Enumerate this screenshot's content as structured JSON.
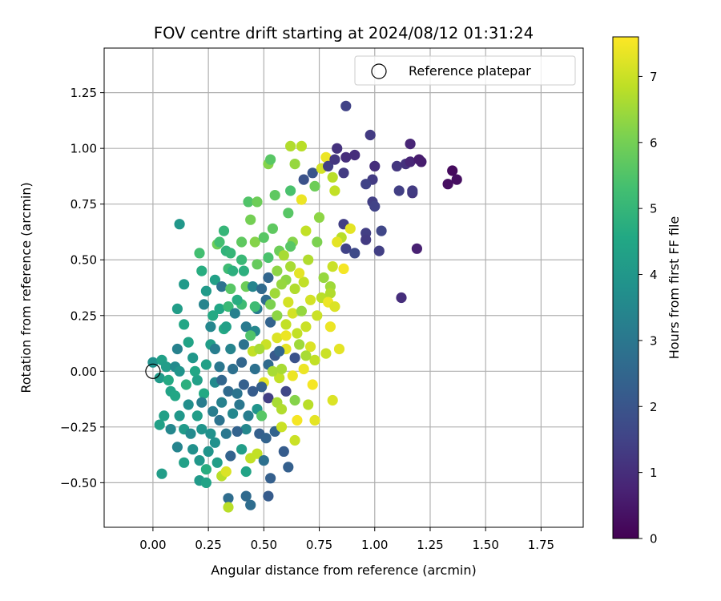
{
  "chart_data": {
    "type": "scatter",
    "title": "FOV centre drift starting at 2024/08/12 01:31:24",
    "xlabel": "Angular distance from reference (arcmin)",
    "ylabel": "Rotation from reference (arcmin)",
    "colorbar_label": "Hours from first FF file",
    "colormap": "viridis",
    "xlim": [
      -0.22,
      1.94
    ],
    "ylim": [
      -0.7,
      1.45
    ],
    "clim": [
      0,
      7.6
    ],
    "xticks": [
      "0.00",
      "0.25",
      "0.50",
      "0.75",
      "1.00",
      "1.25",
      "1.50",
      "1.75"
    ],
    "yticks": [
      "−0.50",
      "−0.25",
      "0.00",
      "0.25",
      "0.50",
      "0.75",
      "1.00",
      "1.25"
    ],
    "cticks": [
      "0",
      "1",
      "2",
      "3",
      "4",
      "5",
      "6",
      "7"
    ],
    "grid": true,
    "legend_position": "top-right",
    "reference_point": {
      "name": "Reference platepar",
      "x": 0.0,
      "y": 0.0
    },
    "series_note": "color = hours from first FF file",
    "points": [
      [
        0.0,
        0.04,
        3.8
      ],
      [
        0.04,
        0.05,
        4.3
      ],
      [
        0.06,
        0.02,
        4.2
      ],
      [
        0.03,
        -0.03,
        4.1
      ],
      [
        0.07,
        -0.04,
        4.6
      ],
      [
        0.1,
        0.02,
        3.6
      ],
      [
        0.12,
        0.0,
        3.9
      ],
      [
        0.08,
        -0.09,
        4.4
      ],
      [
        0.1,
        -0.11,
        4.5
      ],
      [
        0.05,
        -0.2,
        4.3
      ],
      [
        0.12,
        -0.2,
        4.0
      ],
      [
        0.16,
        -0.15,
        3.7
      ],
      [
        0.14,
        -0.26,
        4.1
      ],
      [
        0.08,
        -0.26,
        3.5
      ],
      [
        0.03,
        -0.24,
        4.3
      ],
      [
        0.11,
        0.1,
        3.3
      ],
      [
        0.14,
        0.21,
        4.5
      ],
      [
        0.11,
        0.28,
        4.2
      ],
      [
        0.14,
        0.39,
        4.1
      ],
      [
        0.12,
        0.66,
        4.0
      ],
      [
        0.16,
        0.13,
        4.4
      ],
      [
        0.18,
        0.06,
        4.0
      ],
      [
        0.2,
        -0.04,
        4.3
      ],
      [
        0.2,
        -0.2,
        4.2
      ],
      [
        0.22,
        -0.26,
        3.9
      ],
      [
        0.17,
        -0.28,
        3.6
      ],
      [
        0.11,
        -0.34,
        3.4
      ],
      [
        0.14,
        -0.41,
        4.3
      ],
      [
        0.04,
        -0.46,
        4.2
      ],
      [
        0.21,
        -0.4,
        4.0
      ],
      [
        0.21,
        -0.49,
        4.1
      ],
      [
        0.24,
        -0.5,
        4.4
      ],
      [
        0.25,
        -0.36,
        3.9
      ],
      [
        0.26,
        -0.28,
        3.8
      ],
      [
        0.23,
        -0.1,
        4.6
      ],
      [
        0.24,
        0.03,
        4.3
      ],
      [
        0.26,
        0.12,
        4.2
      ],
      [
        0.26,
        0.2,
        3.5
      ],
      [
        0.23,
        0.3,
        3.4
      ],
      [
        0.24,
        0.36,
        4.1
      ],
      [
        0.22,
        0.45,
        4.7
      ],
      [
        0.21,
        0.53,
        5.3
      ],
      [
        0.28,
        0.41,
        4.3
      ],
      [
        0.31,
        0.38,
        2.9
      ],
      [
        0.3,
        0.28,
        4.5
      ],
      [
        0.32,
        0.19,
        4.6
      ],
      [
        0.28,
        0.1,
        3.2
      ],
      [
        0.3,
        0.02,
        3.0
      ],
      [
        0.28,
        -0.05,
        3.6
      ],
      [
        0.31,
        -0.14,
        3.3
      ],
      [
        0.3,
        -0.22,
        2.9
      ],
      [
        0.28,
        -0.32,
        3.8
      ],
      [
        0.29,
        -0.41,
        4.2
      ],
      [
        0.31,
        -0.47,
        6.8
      ],
      [
        0.33,
        -0.45,
        7.2
      ],
      [
        0.35,
        -0.38,
        2.4
      ],
      [
        0.33,
        -0.28,
        3.0
      ],
      [
        0.36,
        -0.19,
        3.5
      ],
      [
        0.34,
        -0.09,
        2.6
      ],
      [
        0.36,
        0.01,
        2.8
      ],
      [
        0.35,
        0.1,
        3.4
      ],
      [
        0.33,
        0.2,
        4.3
      ],
      [
        0.34,
        0.29,
        5.1
      ],
      [
        0.35,
        0.37,
        5.6
      ],
      [
        0.34,
        0.46,
        5.2
      ],
      [
        0.33,
        0.54,
        4.9
      ],
      [
        0.32,
        0.63,
        5.0
      ],
      [
        0.29,
        0.57,
        5.9
      ],
      [
        0.4,
        0.5,
        5.1
      ],
      [
        0.4,
        0.58,
        5.7
      ],
      [
        0.41,
        0.45,
        4.8
      ],
      [
        0.42,
        0.38,
        5.9
      ],
      [
        0.4,
        0.3,
        5.2
      ],
      [
        0.42,
        0.2,
        3.1
      ],
      [
        0.41,
        0.12,
        2.9
      ],
      [
        0.4,
        0.04,
        2.5
      ],
      [
        0.41,
        -0.06,
        2.3
      ],
      [
        0.39,
        -0.15,
        3.0
      ],
      [
        0.42,
        -0.26,
        3.5
      ],
      [
        0.4,
        -0.35,
        4.2
      ],
      [
        0.42,
        -0.45,
        4.4
      ],
      [
        0.44,
        -0.39,
        6.9
      ],
      [
        0.42,
        -0.56,
        2.6
      ],
      [
        0.44,
        -0.6,
        2.7
      ],
      [
        0.34,
        -0.57,
        2.7
      ],
      [
        0.34,
        -0.61,
        6.8
      ],
      [
        0.47,
        -0.37,
        6.9
      ],
      [
        0.48,
        -0.28,
        2.3
      ],
      [
        0.47,
        -0.17,
        3.9
      ],
      [
        0.45,
        -0.09,
        2.2
      ],
      [
        0.46,
        0.01,
        2.8
      ],
      [
        0.45,
        0.09,
        6.9
      ],
      [
        0.46,
        0.18,
        3.5
      ],
      [
        0.47,
        0.28,
        3.1
      ],
      [
        0.45,
        0.38,
        3.4
      ],
      [
        0.47,
        0.48,
        5.8
      ],
      [
        0.46,
        0.58,
        6.2
      ],
      [
        0.44,
        0.68,
        6.0
      ],
      [
        0.43,
        0.76,
        5.5
      ],
      [
        0.47,
        0.76,
        5.9
      ],
      [
        0.5,
        0.6,
        5.6
      ],
      [
        0.52,
        0.51,
        5.4
      ],
      [
        0.52,
        0.42,
        2.5
      ],
      [
        0.51,
        0.32,
        2.7
      ],
      [
        0.53,
        0.22,
        2.4
      ],
      [
        0.51,
        0.12,
        7.0
      ],
      [
        0.52,
        0.03,
        2.6
      ],
      [
        0.5,
        -0.05,
        7.3
      ],
      [
        0.52,
        -0.12,
        1.4
      ],
      [
        0.49,
        -0.2,
        5.6
      ],
      [
        0.51,
        -0.3,
        2.4
      ],
      [
        0.5,
        -0.4,
        2.8
      ],
      [
        0.53,
        -0.48,
        2.3
      ],
      [
        0.52,
        -0.56,
        2.2
      ],
      [
        0.55,
        -0.27,
        2.4
      ],
      [
        0.56,
        -0.14,
        6.6
      ],
      [
        0.57,
        -0.03,
        6.9
      ],
      [
        0.55,
        0.07,
        2.1
      ],
      [
        0.56,
        0.15,
        7.2
      ],
      [
        0.56,
        0.25,
        6.3
      ],
      [
        0.55,
        0.35,
        6.5
      ],
      [
        0.56,
        0.45,
        6.3
      ],
      [
        0.57,
        0.54,
        5.9
      ],
      [
        0.54,
        0.64,
        5.7
      ],
      [
        0.55,
        0.79,
        5.7
      ],
      [
        0.52,
        0.93,
        6.2
      ],
      [
        0.53,
        0.95,
        5.6
      ],
      [
        0.59,
        0.52,
        6.6
      ],
      [
        0.6,
        0.41,
        6.3
      ],
      [
        0.61,
        0.31,
        7.1
      ],
      [
        0.6,
        0.21,
        6.9
      ],
      [
        0.6,
        0.1,
        7.3
      ],
      [
        0.58,
        0.01,
        6.6
      ],
      [
        0.6,
        -0.09,
        1.6
      ],
      [
        0.58,
        -0.17,
        6.7
      ],
      [
        0.58,
        -0.25,
        7.0
      ],
      [
        0.59,
        -0.36,
        2.2
      ],
      [
        0.61,
        -0.43,
        2.3
      ],
      [
        0.64,
        -0.31,
        7.0
      ],
      [
        0.65,
        -0.22,
        7.5
      ],
      [
        0.64,
        -0.13,
        6.2
      ],
      [
        0.63,
        -0.02,
        7.4
      ],
      [
        0.64,
        0.06,
        1.9
      ],
      [
        0.65,
        0.17,
        6.9
      ],
      [
        0.63,
        0.26,
        7.1
      ],
      [
        0.64,
        0.37,
        6.7
      ],
      [
        0.62,
        0.47,
        6.6
      ],
      [
        0.63,
        0.58,
        6.2
      ],
      [
        0.61,
        0.71,
        5.6
      ],
      [
        0.62,
        0.81,
        5.4
      ],
      [
        0.64,
        0.93,
        6.4
      ],
      [
        0.62,
        1.01,
        6.7
      ],
      [
        0.67,
        1.01,
        6.8
      ],
      [
        0.68,
        0.86,
        1.9
      ],
      [
        0.67,
        0.77,
        7.4
      ],
      [
        0.69,
        0.63,
        6.9
      ],
      [
        0.7,
        0.5,
        6.7
      ],
      [
        0.68,
        0.4,
        6.9
      ],
      [
        0.71,
        0.32,
        7.1
      ],
      [
        0.69,
        0.2,
        7.0
      ],
      [
        0.71,
        0.11,
        7.2
      ],
      [
        0.68,
        0.01,
        7.4
      ],
      [
        0.72,
        -0.06,
        7.5
      ],
      [
        0.7,
        -0.15,
        6.8
      ],
      [
        0.73,
        -0.22,
        7.3
      ],
      [
        0.73,
        0.05,
        6.9
      ],
      [
        0.74,
        0.25,
        7.0
      ],
      [
        0.76,
        0.33,
        6.8
      ],
      [
        0.77,
        0.42,
        6.4
      ],
      [
        0.74,
        0.58,
        6.1
      ],
      [
        0.75,
        0.69,
        6.3
      ],
      [
        0.73,
        0.83,
        5.9
      ],
      [
        0.72,
        0.89,
        2.0
      ],
      [
        0.76,
        0.91,
        7.1
      ],
      [
        0.78,
        0.96,
        7.4
      ],
      [
        0.79,
        0.92,
        1.4
      ],
      [
        0.81,
        0.87,
        6.8
      ],
      [
        0.82,
        0.95,
        1.2
      ],
      [
        0.83,
        1.0,
        1.1
      ],
      [
        0.86,
        0.89,
        1.3
      ],
      [
        0.87,
        0.96,
        1.0
      ],
      [
        0.87,
        1.19,
        1.5
      ],
      [
        0.82,
        0.81,
        6.9
      ],
      [
        0.85,
        0.6,
        6.8
      ],
      [
        0.83,
        0.58,
        7.3
      ],
      [
        0.86,
        0.66,
        1.4
      ],
      [
        0.87,
        0.55,
        1.5
      ],
      [
        0.89,
        0.64,
        7.3
      ],
      [
        0.91,
        0.53,
        1.7
      ],
      [
        0.81,
        0.47,
        7.0
      ],
      [
        0.8,
        0.38,
        6.5
      ],
      [
        0.8,
        0.35,
        6.7
      ],
      [
        0.79,
        0.31,
        7.4
      ],
      [
        0.82,
        0.29,
        7.2
      ],
      [
        0.8,
        0.2,
        7.4
      ],
      [
        0.78,
        0.08,
        7.0
      ],
      [
        0.81,
        -0.13,
        7.2
      ],
      [
        0.84,
        0.1,
        7.3
      ],
      [
        0.86,
        0.46,
        7.5
      ],
      [
        0.91,
        0.97,
        1.0
      ],
      [
        0.96,
        0.62,
        1.4
      ],
      [
        0.96,
        0.59,
        1.3
      ],
      [
        0.99,
        0.86,
        1.3
      ],
      [
        0.96,
        0.84,
        1.5
      ],
      [
        0.99,
        0.76,
        1.4
      ],
      [
        1.0,
        0.74,
        1.5
      ],
      [
        1.02,
        0.54,
        1.4
      ],
      [
        1.03,
        0.63,
        1.6
      ],
      [
        0.98,
        1.06,
        1.3
      ],
      [
        1.0,
        0.92,
        1.0
      ],
      [
        1.1,
        0.92,
        1.2
      ],
      [
        1.11,
        0.81,
        1.4
      ],
      [
        1.14,
        0.93,
        1.1
      ],
      [
        1.16,
        0.94,
        0.8
      ],
      [
        1.16,
        1.02,
        0.8
      ],
      [
        1.17,
        0.8,
        1.2
      ],
      [
        1.17,
        0.81,
        1.3
      ],
      [
        1.2,
        0.95,
        0.6
      ],
      [
        1.21,
        0.94,
        0.6
      ],
      [
        1.12,
        0.33,
        1.0
      ],
      [
        1.19,
        0.55,
        0.7
      ],
      [
        1.33,
        0.84,
        0.3
      ],
      [
        1.35,
        0.9,
        0.2
      ],
      [
        1.37,
        0.86,
        0.3
      ],
      [
        0.35,
        0.53,
        5.0
      ],
      [
        0.3,
        0.58,
        5.3
      ],
      [
        0.27,
        0.25,
        4.6
      ],
      [
        0.19,
        0.0,
        4.5
      ],
      [
        0.15,
        -0.06,
        4.8
      ],
      [
        0.22,
        -0.14,
        3.2
      ],
      [
        0.18,
        -0.35,
        3.8
      ],
      [
        0.24,
        -0.44,
        4.7
      ],
      [
        0.27,
        -0.18,
        3.2
      ],
      [
        0.31,
        -0.04,
        2.5
      ],
      [
        0.38,
        -0.1,
        2.9
      ],
      [
        0.38,
        -0.27,
        2.4
      ],
      [
        0.43,
        -0.2,
        3.2
      ],
      [
        0.49,
        -0.07,
        2.3
      ],
      [
        0.54,
        0.0,
        6.6
      ],
      [
        0.57,
        0.09,
        2.5
      ],
      [
        0.6,
        0.16,
        7.4
      ],
      [
        0.48,
        0.1,
        6.6
      ],
      [
        0.44,
        0.16,
        5.5
      ],
      [
        0.37,
        0.26,
        3.3
      ],
      [
        0.36,
        0.45,
        4.8
      ],
      [
        0.38,
        0.32,
        4.7
      ],
      [
        0.46,
        0.29,
        5.2
      ],
      [
        0.49,
        0.37,
        2.6
      ],
      [
        0.53,
        0.3,
        6.1
      ],
      [
        0.58,
        0.39,
        6.4
      ],
      [
        0.66,
        0.44,
        7.3
      ],
      [
        0.67,
        0.27,
        6.4
      ],
      [
        0.66,
        0.12,
        6.5
      ],
      [
        0.69,
        0.07,
        6.6
      ],
      [
        0.62,
        0.56,
        5.6
      ]
    ]
  },
  "colors": {
    "grid": "#b0b0b0",
    "axes": "#000000",
    "legend_border": "#cccccc"
  }
}
